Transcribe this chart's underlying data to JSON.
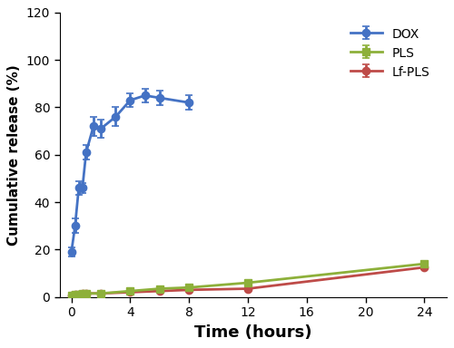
{
  "dox_x": [
    0,
    0.25,
    0.5,
    0.75,
    1,
    1.5,
    2,
    3,
    4,
    5,
    6,
    8
  ],
  "dox_y": [
    19,
    30,
    46,
    46,
    61,
    72,
    71,
    76,
    83,
    85,
    84,
    82
  ],
  "dox_err": [
    2,
    3,
    3,
    2,
    3,
    4,
    4,
    4,
    3,
    3,
    3,
    3
  ],
  "pls_x": [
    0,
    0.25,
    0.5,
    0.75,
    1,
    2,
    4,
    6,
    8,
    12,
    24
  ],
  "pls_y": [
    0.5,
    1.0,
    1.2,
    1.5,
    1.5,
    1.5,
    2.5,
    3.5,
    4.0,
    6.0,
    14.0
  ],
  "pls_err": [
    0.3,
    0.3,
    0.3,
    0.3,
    0.3,
    0.3,
    0.3,
    0.3,
    0.4,
    0.4,
    0.8
  ],
  "lfpls_x": [
    0,
    0.25,
    0.5,
    0.75,
    1,
    2,
    4,
    6,
    8,
    12,
    24
  ],
  "lfpls_y": [
    0.5,
    1.0,
    1.2,
    1.5,
    1.5,
    1.5,
    2.0,
    2.5,
    3.0,
    3.5,
    12.5
  ],
  "lfpls_err": [
    0.3,
    0.3,
    0.3,
    0.3,
    0.3,
    0.3,
    0.3,
    0.3,
    0.4,
    0.4,
    0.8
  ],
  "dox_color": "#4472c4",
  "pls_color": "#8db03a",
  "lfpls_color": "#be4b48",
  "xlabel": "Time (hours)",
  "ylabel": "Cumulative release (%)",
  "xlim": [
    -0.8,
    25.5
  ],
  "ylim": [
    0,
    120
  ],
  "xticks": [
    0,
    4,
    8,
    12,
    16,
    20,
    24
  ],
  "yticks": [
    0,
    20,
    40,
    60,
    80,
    100,
    120
  ],
  "legend_labels": [
    "DOX",
    "PLS",
    "Lf-PLS"
  ],
  "figsize": [
    5.0,
    3.84
  ],
  "dpi": 100
}
